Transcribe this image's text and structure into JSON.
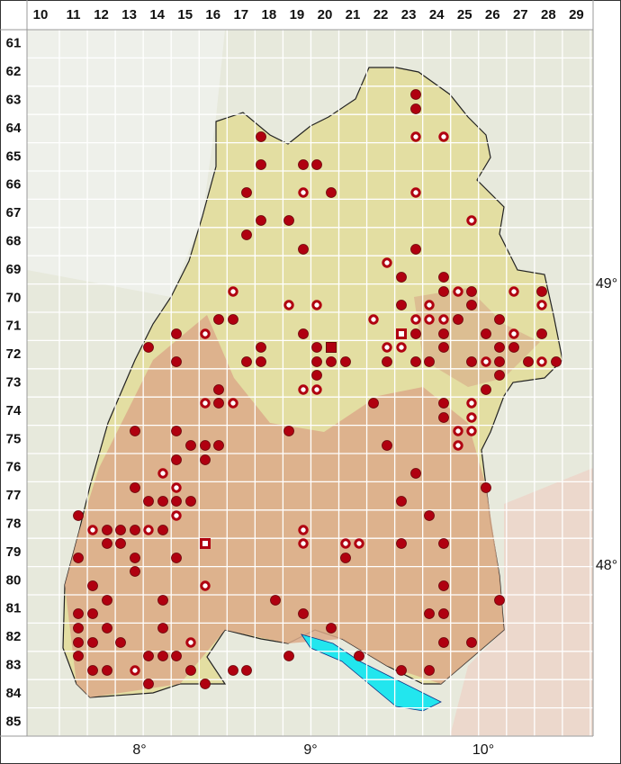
{
  "columns": [
    10,
    11,
    12,
    13,
    14,
    15,
    16,
    17,
    18,
    19,
    20,
    21,
    22,
    23,
    24,
    25,
    26,
    27,
    28,
    29
  ],
  "rows": [
    61,
    62,
    63,
    64,
    65,
    66,
    67,
    68,
    69,
    70,
    71,
    72,
    73,
    74,
    75,
    76,
    77,
    78,
    79,
    80,
    81,
    82,
    83,
    84,
    85
  ],
  "latitude_labels": [
    "49°",
    "48°"
  ],
  "longitude_labels": [
    "8°",
    "9°",
    "10°"
  ]
}
